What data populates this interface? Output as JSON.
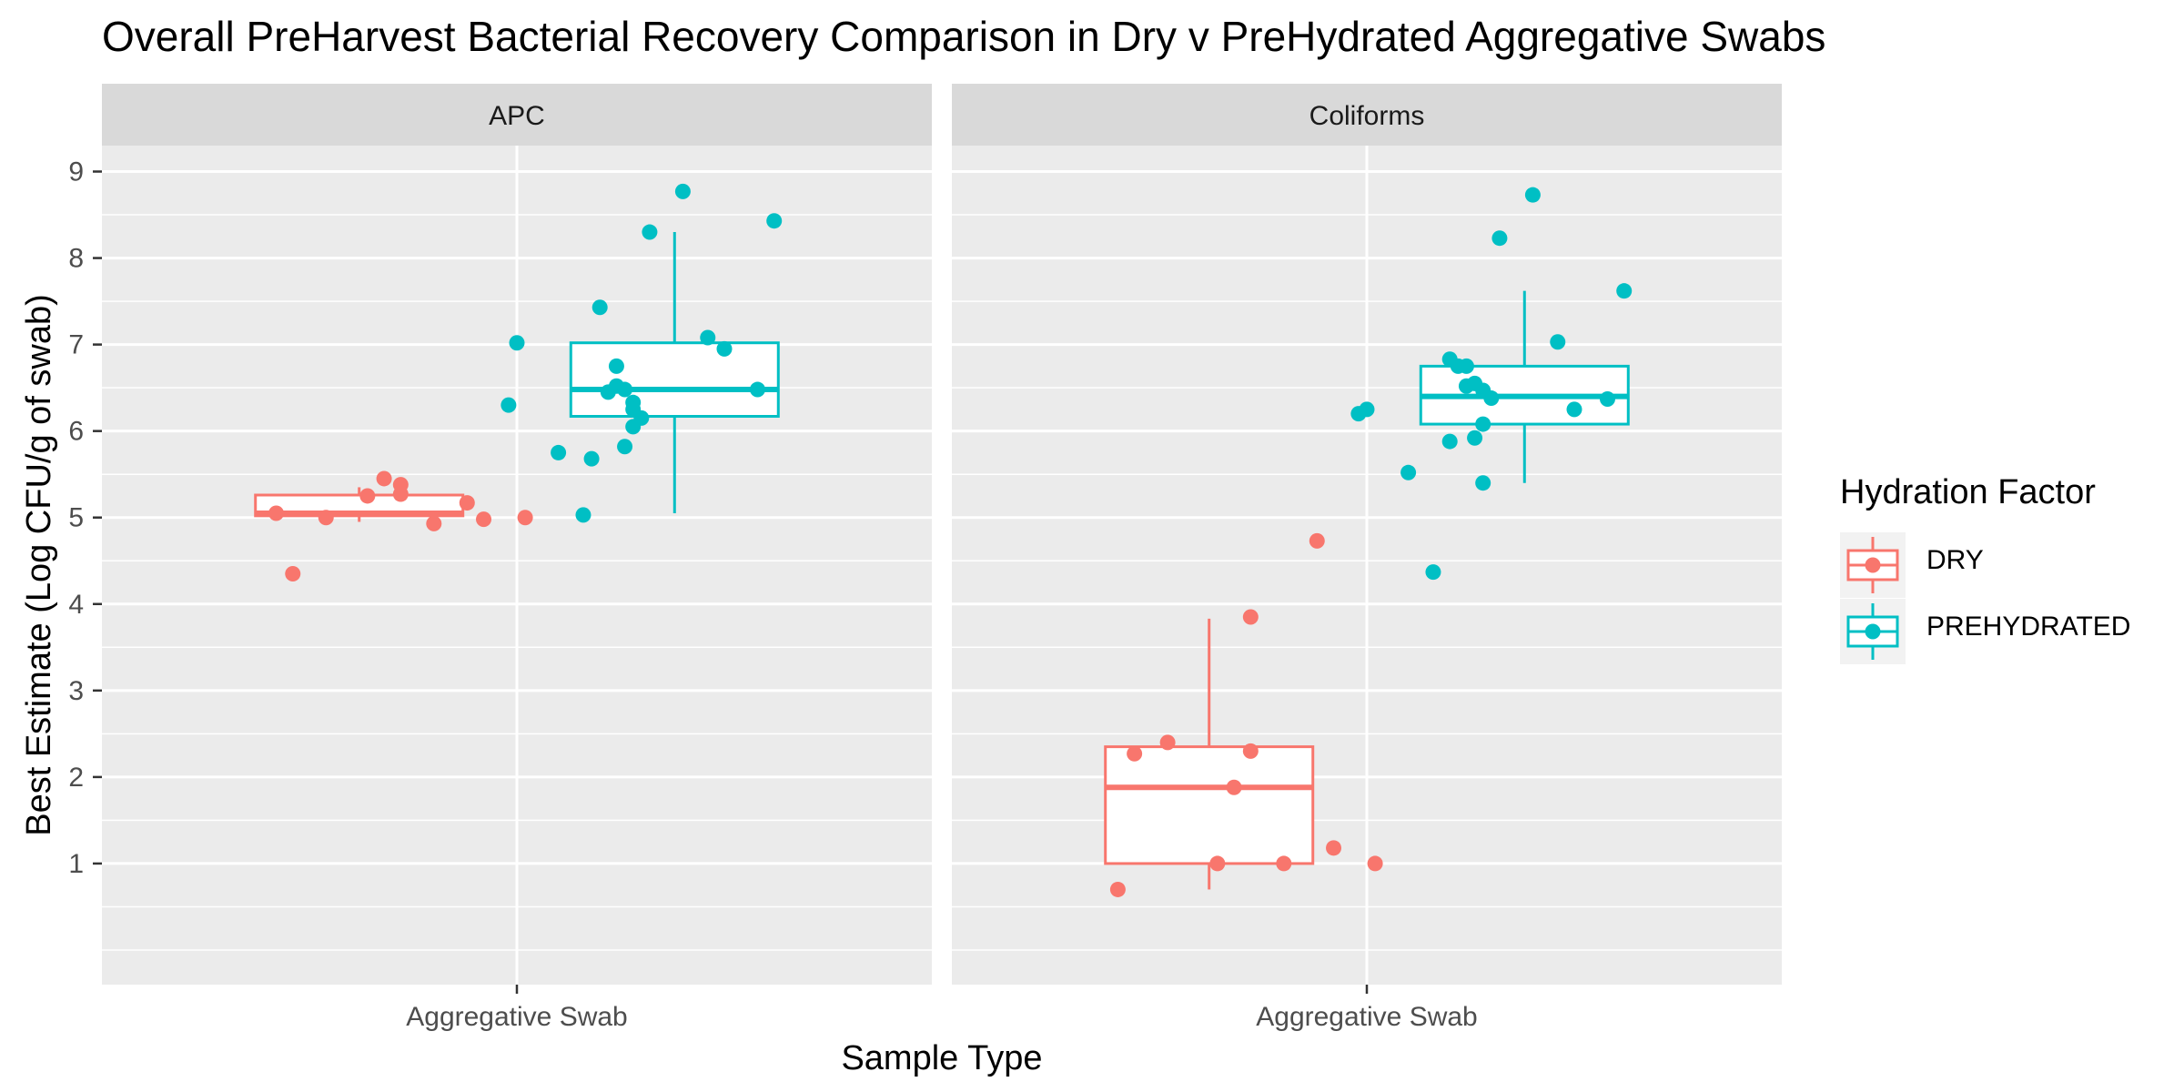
{
  "chart_data": {
    "type": "box",
    "title": "Overall PreHarvest Bacterial Recovery Comparison in Dry v PreHydrated Aggregative Swabs",
    "xlabel": "Sample Type",
    "ylabel": "Best Estimate (Log CFU/g of swab)",
    "x_category": "Aggregative Swab",
    "ylim": [
      -0.4,
      9.3
    ],
    "yticks": [
      1,
      2,
      3,
      4,
      5,
      6,
      7,
      8,
      9
    ],
    "grid": true,
    "legend": {
      "title": "Hydration Factor",
      "position": "right",
      "entries": [
        {
          "label": "DRY",
          "color": "#F8766D"
        },
        {
          "label": "PREHYDRATED",
          "color": "#00BFC4"
        }
      ]
    },
    "panels": [
      {
        "label": "APC",
        "series": [
          {
            "name": "DRY",
            "color": "#F8766D",
            "box": {
              "min": 4.95,
              "q1": 5.02,
              "median": 5.05,
              "q3": 5.26,
              "max": 5.35
            },
            "points": [
              {
                "offset": -0.29,
                "y": 5.05
              },
              {
                "offset": -0.27,
                "y": 4.35
              },
              {
                "offset": -0.23,
                "y": 5.0
              },
              {
                "offset": -0.18,
                "y": 5.25
              },
              {
                "offset": -0.16,
                "y": 5.45
              },
              {
                "offset": -0.14,
                "y": 5.27
              },
              {
                "offset": -0.14,
                "y": 5.38
              },
              {
                "offset": -0.1,
                "y": 4.93
              },
              {
                "offset": -0.06,
                "y": 5.17
              },
              {
                "offset": -0.04,
                "y": 4.98
              },
              {
                "offset": 0.01,
                "y": 5.0
              }
            ]
          },
          {
            "name": "PREHYDRATED",
            "color": "#00BFC4",
            "box": {
              "min": 5.05,
              "q1": 6.17,
              "median": 6.48,
              "q3": 7.02,
              "max": 8.3
            },
            "points": [
              {
                "offset": -0.01,
                "y": 6.3
              },
              {
                "offset": 0.0,
                "y": 7.02
              },
              {
                "offset": 0.05,
                "y": 5.75
              },
              {
                "offset": 0.08,
                "y": 5.03
              },
              {
                "offset": 0.09,
                "y": 5.68
              },
              {
                "offset": 0.1,
                "y": 7.43
              },
              {
                "offset": 0.11,
                "y": 6.45
              },
              {
                "offset": 0.12,
                "y": 6.52
              },
              {
                "offset": 0.12,
                "y": 6.75
              },
              {
                "offset": 0.13,
                "y": 6.48
              },
              {
                "offset": 0.13,
                "y": 5.82
              },
              {
                "offset": 0.14,
                "y": 6.33
              },
              {
                "offset": 0.14,
                "y": 6.25
              },
              {
                "offset": 0.14,
                "y": 6.05
              },
              {
                "offset": 0.15,
                "y": 6.15
              },
              {
                "offset": 0.16,
                "y": 8.3
              },
              {
                "offset": 0.2,
                "y": 8.77
              },
              {
                "offset": 0.23,
                "y": 7.08
              },
              {
                "offset": 0.25,
                "y": 6.95
              },
              {
                "offset": 0.29,
                "y": 6.48
              },
              {
                "offset": 0.31,
                "y": 8.43
              }
            ]
          }
        ]
      },
      {
        "label": "Coliforms",
        "series": [
          {
            "name": "DRY",
            "color": "#F8766D",
            "box": {
              "min": 0.7,
              "q1": 1.0,
              "median": 1.88,
              "q3": 2.35,
              "max": 3.83
            },
            "points": [
              {
                "offset": -0.3,
                "y": 0.7
              },
              {
                "offset": -0.28,
                "y": 2.27
              },
              {
                "offset": -0.24,
                "y": 2.4
              },
              {
                "offset": -0.18,
                "y": 1.0
              },
              {
                "offset": -0.16,
                "y": 1.88
              },
              {
                "offset": -0.14,
                "y": 2.3
              },
              {
                "offset": -0.14,
                "y": 3.85
              },
              {
                "offset": -0.1,
                "y": 1.0
              },
              {
                "offset": -0.06,
                "y": 4.73
              },
              {
                "offset": -0.04,
                "y": 1.18
              },
              {
                "offset": 0.01,
                "y": 1.0
              }
            ]
          },
          {
            "name": "PREHYDRATED",
            "color": "#00BFC4",
            "box": {
              "min": 5.4,
              "q1": 6.08,
              "median": 6.4,
              "q3": 6.75,
              "max": 7.62
            },
            "points": [
              {
                "offset": -0.01,
                "y": 6.2
              },
              {
                "offset": 0.0,
                "y": 6.25
              },
              {
                "offset": 0.05,
                "y": 5.52
              },
              {
                "offset": 0.08,
                "y": 4.37
              },
              {
                "offset": 0.1,
                "y": 5.88
              },
              {
                "offset": 0.1,
                "y": 6.83
              },
              {
                "offset": 0.11,
                "y": 6.75
              },
              {
                "offset": 0.12,
                "y": 6.52
              },
              {
                "offset": 0.12,
                "y": 6.75
              },
              {
                "offset": 0.13,
                "y": 6.55
              },
              {
                "offset": 0.13,
                "y": 5.92
              },
              {
                "offset": 0.14,
                "y": 6.47
              },
              {
                "offset": 0.14,
                "y": 6.08
              },
              {
                "offset": 0.14,
                "y": 5.4
              },
              {
                "offset": 0.15,
                "y": 6.38
              },
              {
                "offset": 0.16,
                "y": 8.23
              },
              {
                "offset": 0.2,
                "y": 8.73
              },
              {
                "offset": 0.23,
                "y": 7.03
              },
              {
                "offset": 0.25,
                "y": 6.25
              },
              {
                "offset": 0.29,
                "y": 6.37
              },
              {
                "offset": 0.31,
                "y": 7.62
              }
            ]
          }
        ]
      }
    ]
  }
}
